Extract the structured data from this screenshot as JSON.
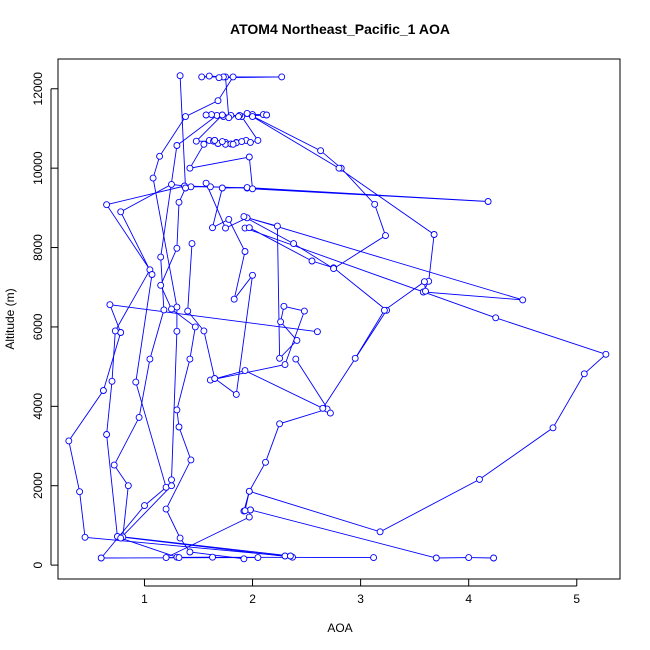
{
  "chart_data": {
    "type": "line",
    "title": "ATOM4 Northeast_Pacific_1 AOA",
    "xlabel": "AOA",
    "ylabel": "Altitude (m)",
    "xlim": [
      0.2,
      5.4
    ],
    "ylim": [
      -350,
      12750
    ],
    "xticks": [
      1,
      2,
      3,
      4,
      5
    ],
    "yticks": [
      0,
      2000,
      4000,
      6000,
      8000,
      10000,
      12000
    ],
    "grid": false,
    "marker": "open-circle",
    "series_color": "#0000ff",
    "profiles": [
      [
        [
          2.3,
          230
        ],
        [
          0.45,
          700
        ],
        [
          0.4,
          1850
        ],
        [
          0.3,
          3130
        ],
        [
          0.62,
          4400
        ],
        [
          0.78,
          5860
        ],
        [
          0.68,
          6560
        ],
        [
          2.6,
          5880
        ]
      ],
      [
        [
          2.37,
          200
        ],
        [
          0.75,
          720
        ],
        [
          0.65,
          3290
        ],
        [
          0.7,
          4630
        ],
        [
          0.73,
          5900
        ],
        [
          1.05,
          7440
        ],
        [
          0.65,
          9080
        ],
        [
          1.37,
          9550
        ],
        [
          1.95,
          9500
        ]
      ],
      [
        [
          2.35,
          230
        ],
        [
          0.8,
          710
        ],
        [
          0.85,
          2000
        ],
        [
          0.72,
          2520
        ],
        [
          0.95,
          3720
        ],
        [
          1.05,
          5190
        ],
        [
          1.18,
          6430
        ],
        [
          1.15,
          7760
        ],
        [
          1.3,
          10570
        ],
        [
          1.67,
          11330
        ]
      ],
      [
        [
          2.05,
          190
        ],
        [
          0.6,
          180
        ],
        [
          1.0,
          1500
        ],
        [
          1.2,
          1960
        ],
        [
          0.92,
          4610
        ],
        [
          1.07,
          7320
        ],
        [
          0.78,
          8900
        ],
        [
          1.25,
          9590
        ],
        [
          1.43,
          9530
        ],
        [
          1.61,
          9530
        ]
      ],
      [
        [
          3.12,
          190
        ],
        [
          1.3,
          200
        ],
        [
          0.78,
          680
        ],
        [
          1.25,
          2000
        ],
        [
          1.25,
          2150
        ],
        [
          1.3,
          5890
        ],
        [
          1.3,
          6500
        ],
        [
          1.08,
          9750
        ],
        [
          1.14,
          10300
        ],
        [
          1.38,
          11300
        ],
        [
          1.68,
          11700
        ],
        [
          1.82,
          12300
        ]
      ],
      [
        [
          1.92,
          160
        ],
        [
          1.42,
          330
        ],
        [
          1.33,
          680
        ],
        [
          1.2,
          1410
        ],
        [
          1.43,
          2650
        ],
        [
          1.32,
          3480
        ],
        [
          1.3,
          3910
        ],
        [
          1.42,
          5190
        ],
        [
          1.47,
          6000
        ],
        [
          1.25,
          6450
        ],
        [
          1.15,
          7050
        ],
        [
          1.3,
          7980
        ],
        [
          1.32,
          9140
        ],
        [
          1.38,
          9500
        ],
        [
          1.33,
          12330
        ]
      ],
      [
        [
          1.63,
          200
        ],
        [
          1.32,
          190
        ],
        [
          1.2,
          190
        ],
        [
          1.97,
          1210
        ],
        [
          1.98,
          1390
        ],
        [
          1.92,
          1360
        ],
        [
          1.97,
          1860
        ],
        [
          2.12,
          2590
        ],
        [
          2.25,
          3560
        ],
        [
          2.69,
          3930
        ],
        [
          2.72,
          3830
        ],
        [
          2.4,
          5190
        ]
      ],
      [
        [
          4.23,
          180
        ],
        [
          4.0,
          190
        ],
        [
          3.7,
          180
        ],
        [
          1.98,
          1390
        ],
        [
          1.93,
          1370
        ],
        [
          1.97,
          1860
        ],
        [
          3.18,
          840
        ],
        [
          4.1,
          2160
        ],
        [
          4.78,
          3460
        ],
        [
          5.07,
          4820
        ],
        [
          5.27,
          5310
        ],
        [
          4.25,
          6230
        ],
        [
          1.93,
          8490
        ],
        [
          1.97,
          8500
        ],
        [
          2.55,
          7660
        ],
        [
          2.75,
          7490
        ],
        [
          3.24,
          6420
        ],
        [
          2.65,
          3950
        ],
        [
          1.93,
          4900
        ],
        [
          1.61,
          4660
        ],
        [
          2.3,
          5050
        ],
        [
          2.48,
          6400
        ],
        [
          2.29,
          6520
        ],
        [
          2.26,
          6130
        ],
        [
          2.41,
          5660
        ],
        [
          2.25,
          5210
        ],
        [
          2.23,
          8540
        ],
        [
          1.95,
          8750
        ],
        [
          1.75,
          8490
        ],
        [
          1.57,
          9620
        ]
      ],
      [
        [
          1.44,
          8100
        ],
        [
          1.4,
          6400
        ],
        [
          1.55,
          5900
        ],
        [
          1.65,
          4700
        ],
        [
          1.85,
          4300
        ],
        [
          2.0,
          7300
        ],
        [
          1.83,
          6700
        ],
        [
          1.93,
          7900
        ],
        [
          1.78,
          8710
        ],
        [
          1.63,
          8500
        ],
        [
          1.72,
          9500
        ],
        [
          1.95,
          9510
        ],
        [
          4.18,
          9160
        ],
        [
          2.0,
          9480
        ],
        [
          1.97,
          10280
        ],
        [
          1.42,
          10000
        ],
        [
          1.55,
          10600
        ],
        [
          1.6,
          10700
        ],
        [
          1.65,
          10700
        ],
        [
          1.75,
          10650
        ],
        [
          1.85,
          10650
        ],
        [
          1.94,
          10700
        ],
        [
          1.98,
          10650
        ],
        [
          2.05,
          10700
        ],
        [
          1.9,
          11300
        ],
        [
          1.8,
          11330
        ],
        [
          1.88,
          11330
        ],
        [
          2.0,
          11350
        ],
        [
          2.1,
          11350
        ],
        [
          2.13,
          11340
        ],
        [
          1.87,
          11300
        ],
        [
          1.62,
          11350
        ],
        [
          1.57,
          11340
        ],
        [
          1.73,
          11300
        ],
        [
          1.78,
          11270
        ],
        [
          1.75,
          12300
        ],
        [
          1.6,
          12320
        ],
        [
          1.53,
          12300
        ],
        [
          1.73,
          12300
        ],
        [
          2.27,
          12300
        ],
        [
          1.69,
          12280
        ]
      ],
      [
        [
          1.95,
          11380
        ],
        [
          2.63,
          10440
        ],
        [
          2.82,
          10000
        ],
        [
          3.13,
          9090
        ],
        [
          3.23,
          8300
        ],
        [
          2.75,
          7470
        ],
        [
          2.38,
          8100
        ],
        [
          1.92,
          8780
        ],
        [
          4.5,
          6680
        ],
        [
          3.58,
          6880
        ],
        [
          3.63,
          7150
        ],
        [
          3.68,
          8330
        ],
        [
          2.8,
          10000
        ],
        [
          2.0,
          11300
        ],
        [
          1.72,
          11340
        ],
        [
          1.48,
          10680
        ],
        [
          1.64,
          10680
        ],
        [
          1.68,
          10620
        ],
        [
          1.75,
          10600
        ],
        [
          1.8,
          10610
        ],
        [
          1.85,
          10640
        ],
        [
          1.9,
          10670
        ],
        [
          1.82,
          10600
        ],
        [
          1.65,
          10700
        ],
        [
          1.72,
          10670
        ]
      ],
      [
        [
          2.95,
          5210
        ],
        [
          3.22,
          6420
        ],
        [
          3.59,
          7140
        ],
        [
          3.6,
          6900
        ]
      ]
    ]
  }
}
